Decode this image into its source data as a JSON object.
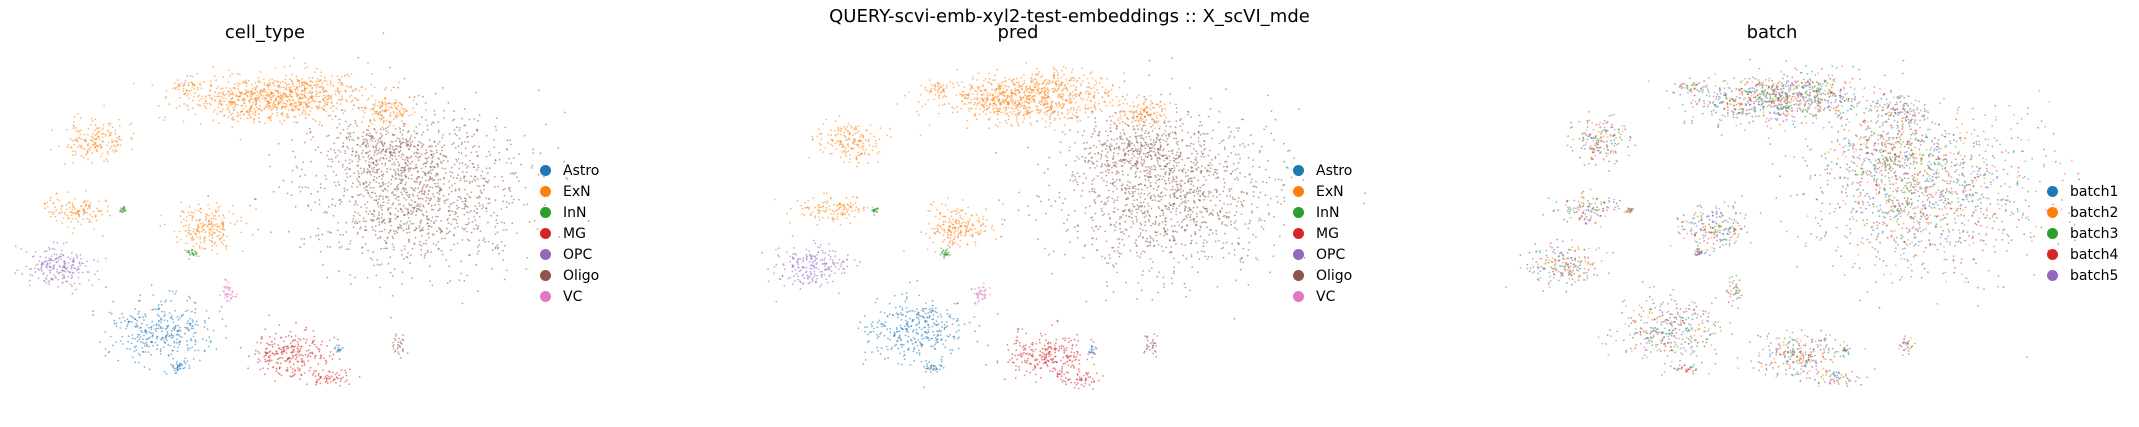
{
  "figure": {
    "suptitle": "QUERY-scvi-emb-xyl2-test-embeddings :: X_scVI_mde"
  },
  "chart_data": [
    {
      "type": "scatter",
      "title": "cell_type",
      "xlabel": "",
      "ylabel": "",
      "grid": false,
      "legend_position": "right",
      "legend": [
        {
          "label": "Astro",
          "color": "#1f77b4"
        },
        {
          "label": "ExN",
          "color": "#ff7f0e"
        },
        {
          "label": "InN",
          "color": "#2ca02c"
        },
        {
          "label": "MG",
          "color": "#d62728"
        },
        {
          "label": "OPC",
          "color": "#9467bd"
        },
        {
          "label": "Oligo",
          "color": "#8c564b"
        },
        {
          "label": "VC",
          "color": "#e377c2"
        }
      ]
    },
    {
      "type": "scatter",
      "title": "pred",
      "xlabel": "",
      "ylabel": "",
      "grid": false,
      "legend_position": "right",
      "legend": [
        {
          "label": "Astro",
          "color": "#1f77b4"
        },
        {
          "label": "ExN",
          "color": "#ff7f0e"
        },
        {
          "label": "InN",
          "color": "#2ca02c"
        },
        {
          "label": "MG",
          "color": "#d62728"
        },
        {
          "label": "OPC",
          "color": "#9467bd"
        },
        {
          "label": "Oligo",
          "color": "#8c564b"
        },
        {
          "label": "VC",
          "color": "#e377c2"
        }
      ]
    },
    {
      "type": "scatter",
      "title": "batch",
      "xlabel": "",
      "ylabel": "",
      "grid": false,
      "legend_position": "right",
      "legend": [
        {
          "label": "batch1",
          "color": "#1f77b4"
        },
        {
          "label": "batch2",
          "color": "#ff7f0e"
        },
        {
          "label": "batch3",
          "color": "#2ca02c"
        },
        {
          "label": "batch4",
          "color": "#d62728"
        },
        {
          "label": "batch5",
          "color": "#9467bd"
        }
      ]
    }
  ]
}
